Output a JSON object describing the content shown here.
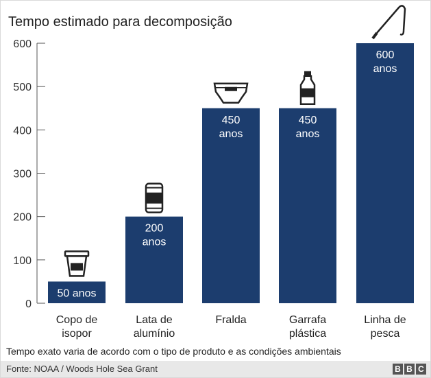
{
  "chart_data": {
    "type": "bar",
    "title": "Tempo estimado para decomposição",
    "categories": [
      [
        "Copo de",
        "isopor"
      ],
      [
        "Lata de",
        "alumínio"
      ],
      [
        "Fralda"
      ],
      [
        "Garrafa",
        "plástica"
      ],
      [
        "Linha de",
        "pesca"
      ]
    ],
    "values": [
      50,
      200,
      450,
      450,
      600
    ],
    "bar_labels": [
      [
        "50 anos"
      ],
      [
        "200",
        "anos"
      ],
      [
        "450",
        "anos"
      ],
      [
        "450",
        "anos"
      ],
      [
        "600",
        "anos"
      ]
    ],
    "icons": [
      "cup-icon",
      "can-icon",
      "diaper-icon",
      "bottle-icon",
      "fishing-line-icon"
    ],
    "ylim": [
      0,
      600
    ],
    "yticks": [
      "0",
      "100",
      "200",
      "300",
      "400",
      "500",
      "600"
    ],
    "bar_color": "#1c3d6e",
    "grid": false
  },
  "note": "Tempo exato varia de acordo com o tipo de produto e as condições ambientais",
  "source": "Fonte: NOAA / Woods Hole Sea Grant",
  "logo": [
    "B",
    "B",
    "C"
  ]
}
